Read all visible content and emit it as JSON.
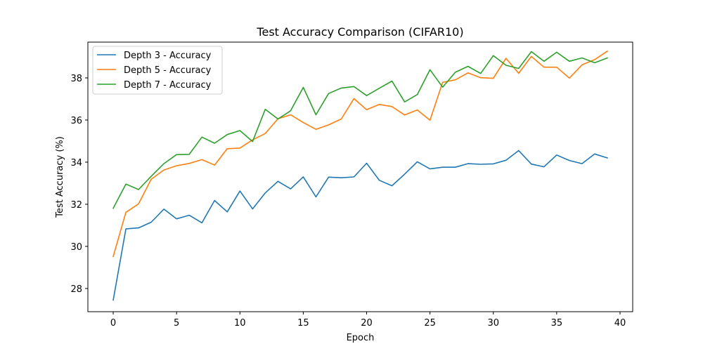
{
  "chart_data": {
    "type": "line",
    "title": "Test Accuracy Comparison (CIFAR10)",
    "xlabel": "Epoch",
    "ylabel": "Test Accuracy (%)",
    "xlim": [
      -2,
      41
    ],
    "ylim": [
      26.9,
      39.7
    ],
    "xticks": [
      0,
      5,
      10,
      15,
      20,
      25,
      30,
      35,
      40
    ],
    "yticks": [
      28,
      30,
      32,
      34,
      36,
      38
    ],
    "grid": false,
    "legend_position": "top-left",
    "x": [
      0,
      1,
      2,
      3,
      4,
      5,
      6,
      7,
      8,
      9,
      10,
      11,
      12,
      13,
      14,
      15,
      16,
      17,
      18,
      19,
      20,
      21,
      22,
      23,
      24,
      25,
      26,
      27,
      28,
      29,
      30,
      31,
      32,
      33,
      34,
      35,
      36,
      37,
      38,
      39
    ],
    "series": [
      {
        "name": "Depth 3 - Accuracy",
        "color": "#1f77b4",
        "values": [
          27.45,
          30.83,
          30.88,
          31.15,
          31.77,
          31.31,
          31.48,
          31.12,
          32.18,
          31.64,
          32.63,
          31.78,
          32.54,
          33.09,
          32.73,
          33.3,
          32.35,
          33.29,
          33.26,
          33.3,
          33.95,
          33.14,
          32.88,
          33.43,
          34.02,
          33.68,
          33.76,
          33.76,
          33.93,
          33.9,
          33.92,
          34.09,
          34.55,
          33.91,
          33.78,
          34.34,
          34.08,
          33.93,
          34.39,
          34.2
        ]
      },
      {
        "name": "Depth 5 - Accuracy",
        "color": "#ff7f0e",
        "values": [
          29.52,
          31.62,
          32.02,
          33.19,
          33.63,
          33.83,
          33.94,
          34.12,
          33.86,
          34.64,
          34.67,
          35.06,
          35.36,
          36.06,
          36.25,
          35.88,
          35.56,
          35.77,
          36.05,
          37.02,
          36.49,
          36.74,
          36.64,
          36.24,
          36.48,
          35.99,
          37.79,
          37.91,
          38.24,
          38.01,
          37.98,
          38.93,
          38.22,
          39.02,
          38.51,
          38.51,
          37.99,
          38.62,
          38.87,
          39.27
        ]
      },
      {
        "name": "Depth 7 - Accuracy",
        "color": "#2ca02c",
        "values": [
          31.81,
          32.96,
          32.7,
          33.33,
          33.93,
          34.36,
          34.37,
          35.19,
          34.9,
          35.31,
          35.5,
          34.98,
          36.51,
          36.05,
          36.44,
          37.55,
          36.25,
          37.26,
          37.52,
          37.59,
          37.16,
          37.51,
          37.85,
          36.86,
          37.21,
          38.39,
          37.56,
          38.27,
          38.55,
          38.21,
          39.06,
          38.6,
          38.45,
          39.25,
          38.79,
          39.22,
          38.79,
          38.95,
          38.72,
          38.95
        ]
      }
    ]
  }
}
